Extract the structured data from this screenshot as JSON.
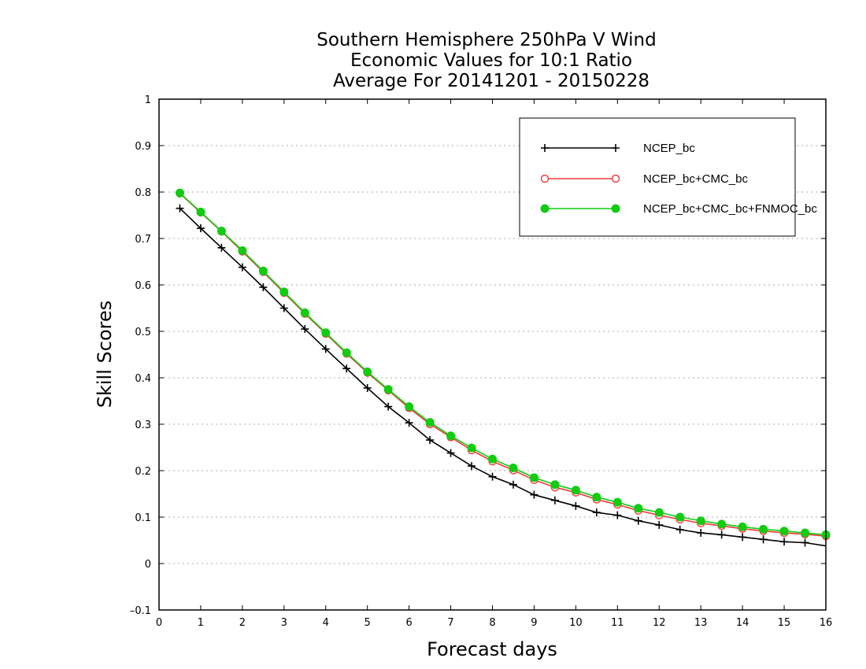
{
  "chart_data": {
    "type": "line",
    "title": [
      "Southern Hemisphere 250hPa V Wind",
      "Economic Values for 10:1 Ratio",
      "Average For 20141201 - 20150228"
    ],
    "xlabel": "Forecast days",
    "ylabel": "Skill Scores",
    "xlim": [
      0,
      16
    ],
    "ylim": [
      -0.1,
      1
    ],
    "xticks": [
      0,
      1,
      2,
      3,
      4,
      5,
      6,
      7,
      8,
      9,
      10,
      11,
      12,
      13,
      14,
      15,
      16
    ],
    "xtick_labels": [
      "0",
      "1",
      "2",
      "3",
      "4",
      "5",
      "6",
      "7",
      "8",
      "9",
      "10",
      "11",
      "12",
      "13",
      "14",
      "15",
      "16"
    ],
    "yticks": [
      -0.1,
      0,
      0.1,
      0.2,
      0.3,
      0.4,
      0.5,
      0.6,
      0.7,
      0.8,
      0.9,
      1
    ],
    "ytick_labels": [
      "–0.1",
      "0",
      "0.1",
      "0.2",
      "0.3",
      "0.4",
      "0.5",
      "0.6",
      "0.7",
      "0.8",
      "0.9",
      "1"
    ],
    "grid": true,
    "legend_position": "top-right",
    "x": [
      0.5,
      1,
      1.5,
      2,
      2.5,
      3,
      3.5,
      4,
      4.5,
      5,
      5.5,
      6,
      6.5,
      7,
      7.5,
      8,
      8.5,
      9,
      9.5,
      10,
      10.5,
      11,
      11.5,
      12,
      12.5,
      13,
      13.5,
      14,
      14.5,
      15,
      15.5,
      16
    ],
    "series": [
      {
        "name": "NCEP_bc",
        "color": "#000000",
        "marker": "plus",
        "values": [
          0.765,
          0.722,
          0.68,
          0.638,
          0.595,
          0.55,
          0.505,
          0.462,
          0.42,
          0.378,
          0.338,
          0.303,
          0.266,
          0.238,
          0.21,
          0.187,
          0.17,
          0.148,
          0.136,
          0.124,
          0.11,
          0.104,
          0.092,
          0.083,
          0.073,
          0.066,
          0.062,
          0.057,
          0.052,
          0.047,
          0.045,
          0.038
        ]
      },
      {
        "name": "NCEP_bc+CMC_bc",
        "color": "#ee3b3b",
        "marker": "open-circle",
        "values": [
          0.797,
          0.756,
          0.715,
          0.672,
          0.628,
          0.583,
          0.538,
          0.495,
          0.452,
          0.411,
          0.373,
          0.335,
          0.3,
          0.272,
          0.244,
          0.22,
          0.201,
          0.18,
          0.164,
          0.153,
          0.138,
          0.127,
          0.114,
          0.104,
          0.095,
          0.087,
          0.081,
          0.075,
          0.07,
          0.066,
          0.063,
          0.059
        ]
      },
      {
        "name": "NCEP_bc+CMC_bc+FNMOC_bc",
        "color": "#11cc11",
        "marker": "filled-circle",
        "values": [
          0.798,
          0.757,
          0.716,
          0.674,
          0.63,
          0.585,
          0.54,
          0.497,
          0.454,
          0.413,
          0.375,
          0.338,
          0.304,
          0.275,
          0.249,
          0.225,
          0.206,
          0.185,
          0.17,
          0.158,
          0.143,
          0.132,
          0.119,
          0.11,
          0.1,
          0.092,
          0.085,
          0.079,
          0.074,
          0.07,
          0.066,
          0.062
        ]
      }
    ]
  }
}
